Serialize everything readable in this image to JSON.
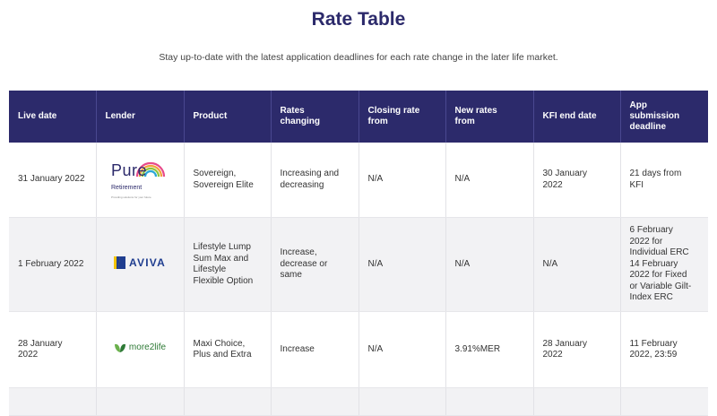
{
  "page": {
    "title": "Rate Table",
    "subtitle": "Stay up-to-date with the latest application deadlines for each rate change in the later life market."
  },
  "table": {
    "headers": {
      "live_date": "Live date",
      "lender": "Lender",
      "product": "Product",
      "rates_changing": [
        "Rates",
        "changing"
      ],
      "closing_rate": [
        "Closing rate",
        "from"
      ],
      "new_rates": [
        "New rates",
        "from"
      ],
      "kfi_end": "KFI end date",
      "app_deadline": [
        "App",
        "submission",
        "deadline"
      ]
    },
    "rows": [
      {
        "live_date": "31 January 2022",
        "lender": {
          "name": "Pure Retirement",
          "logo_icon": "pure-retirement-logo",
          "logo_word": "Pure",
          "logo_sub": "Retirement",
          "logo_tag": "Providing solutions for your future",
          "colors": [
            "#e84a8a",
            "#f2a23a",
            "#8cc63e",
            "#2aa8d8"
          ]
        },
        "product": [
          "Sovereign,",
          "Sovereign Elite"
        ],
        "rates_changing": [
          "Increasing and",
          "decreasing"
        ],
        "closing_rate": "N/A",
        "new_rates": "N/A",
        "kfi_end": [
          "30 January",
          "2022"
        ],
        "app_deadline": [
          "21 days from",
          "KFI"
        ]
      },
      {
        "live_date": "1 February 2022",
        "lender": {
          "name": "Aviva",
          "logo_icon": "aviva-logo",
          "logo_word": "AVIVA",
          "colors": [
            "#1f3d8f",
            "#f5c400"
          ]
        },
        "product": [
          "Lifestyle Lump",
          "Sum Max and",
          "Lifestyle",
          "Flexible Option"
        ],
        "rates_changing": [
          "Increase,",
          "decrease or",
          "same"
        ],
        "closing_rate": "N/A",
        "new_rates": "N/A",
        "kfi_end": "N/A",
        "app_deadline": [
          "6 February",
          "2022 for",
          "Individual ERC",
          "14 February",
          "2022 for Fixed",
          "or Variable Gilt-",
          "Index ERC"
        ]
      },
      {
        "live_date": [
          "28 January",
          "2022"
        ],
        "lender": {
          "name": "more2life",
          "logo_icon": "more2life-logo",
          "logo_word": "more2life",
          "colors": [
            "#2e7a36",
            "#6ab04c"
          ]
        },
        "product": [
          "Maxi Choice,",
          "Plus and Extra"
        ],
        "rates_changing": "Increase",
        "closing_rate": "N/A",
        "new_rates": "3.91%MER",
        "kfi_end": [
          "28 January",
          "2022"
        ],
        "app_deadline": [
          "11 February",
          "2022, 23:59"
        ]
      }
    ]
  },
  "colors": {
    "header_bg": "#2c2a6b",
    "title": "#2c2a6b",
    "alt_row": "#f2f2f4"
  }
}
